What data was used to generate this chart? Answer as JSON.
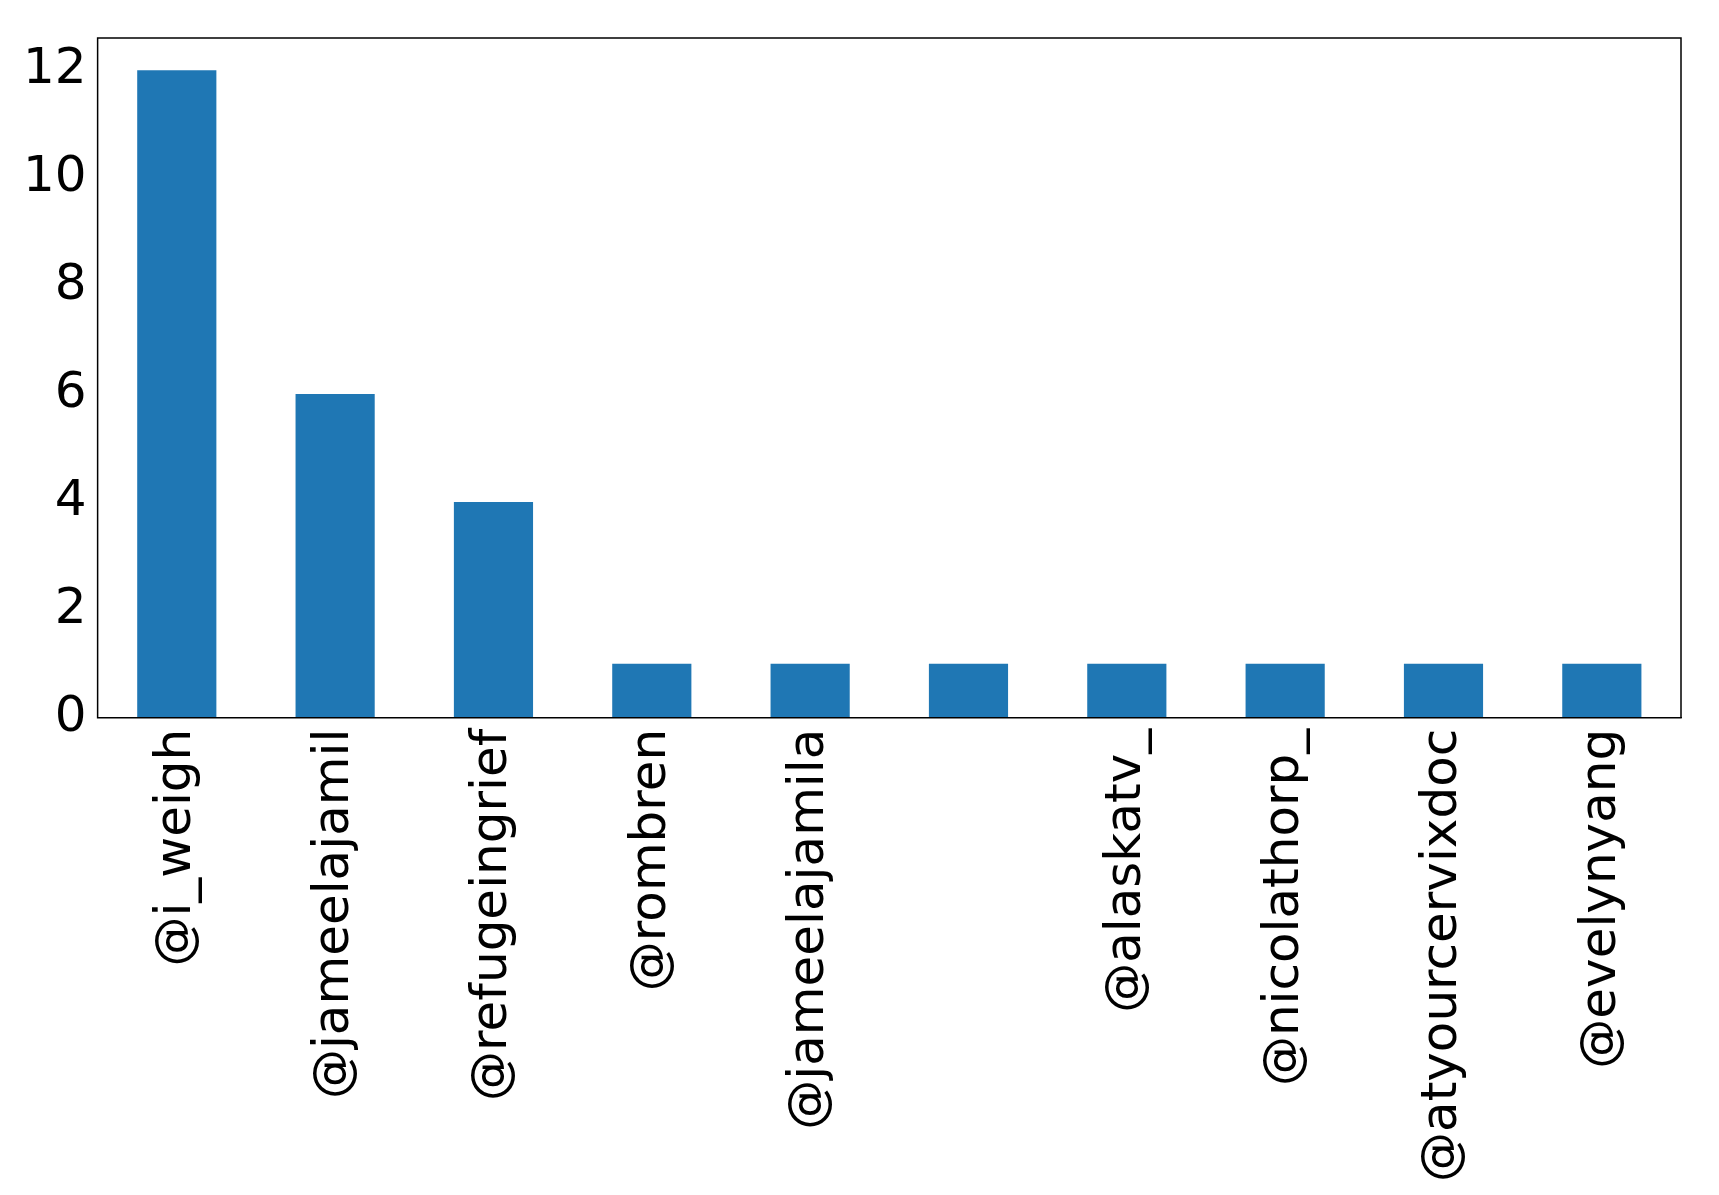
{
  "chart_data": {
    "type": "bar",
    "categories": [
      "@i_weigh",
      "@jameelajamil",
      "@refugeingrief",
      "@rombren",
      "@jameelajamila",
      null,
      "@alaskatv_",
      "@nicolathorp_",
      "@atyourcervixdoc",
      "@evelynyang"
    ],
    "values": [
      12,
      6,
      4,
      1,
      1,
      1,
      1,
      1,
      1,
      1
    ],
    "color": "#1f77b4",
    "ylim": [
      0,
      12.6
    ],
    "yticks": [
      0,
      2,
      4,
      6,
      8,
      10,
      12
    ],
    "grid": false,
    "legend": false
  }
}
